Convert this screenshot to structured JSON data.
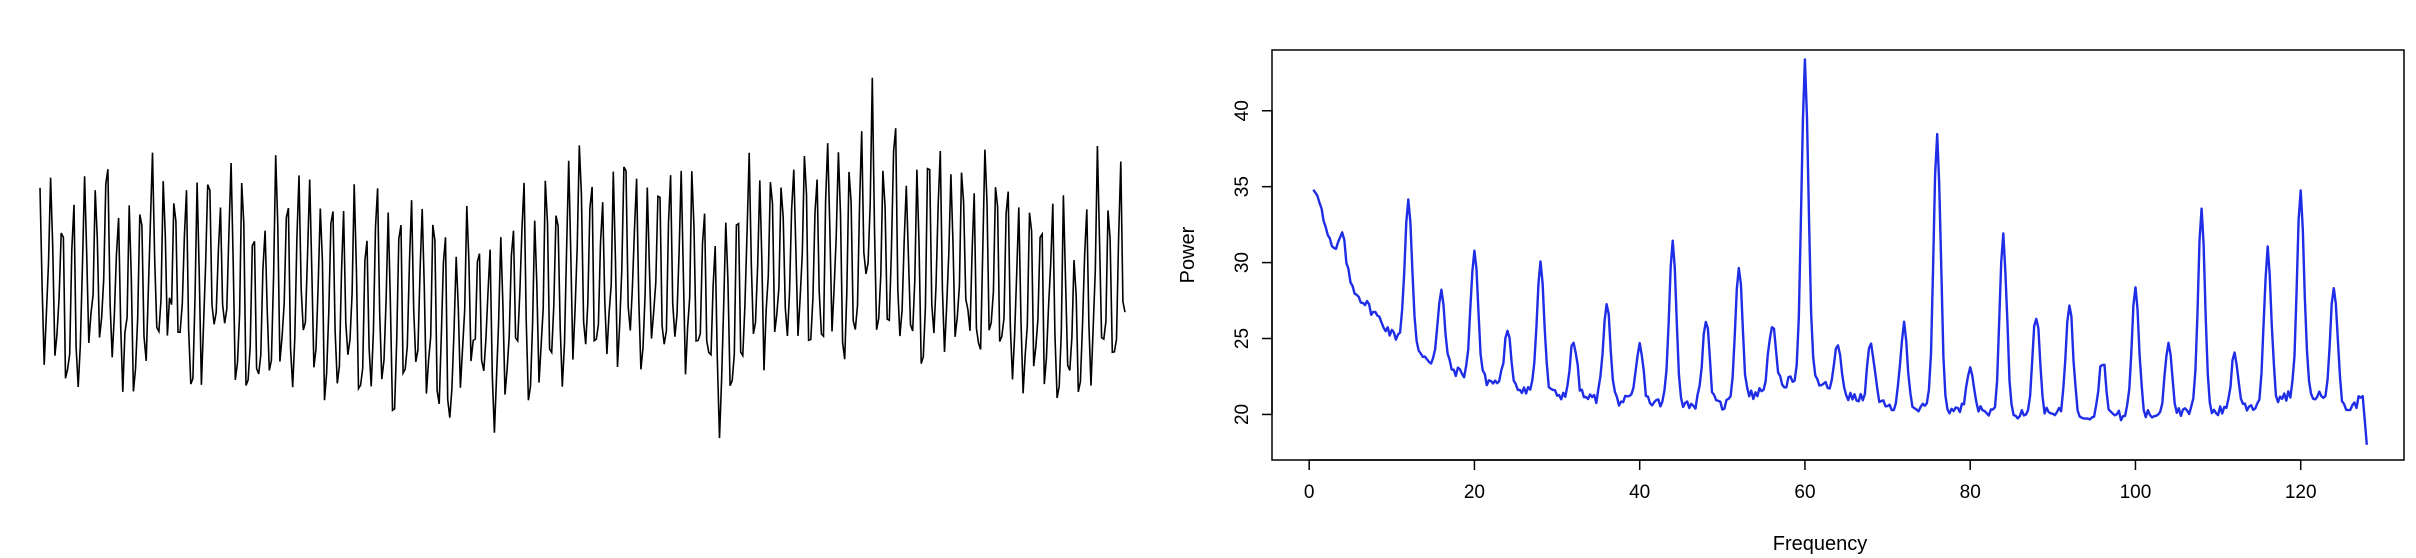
{
  "chart_data": [
    {
      "type": "line",
      "title": "",
      "xlabel": "",
      "ylabel": "",
      "axes_shown": false,
      "color": "#000000",
      "n_points": 512,
      "description_series": {
        "name": "",
        "level_range": [
          -2.6,
          2.3
        ],
        "level_trend": [
          {
            "x": 0,
            "level": 0.0
          },
          {
            "x": 64,
            "level": 0.2
          },
          {
            "x": 128,
            "level": -0.2
          },
          {
            "x": 192,
            "level": -0.6
          },
          {
            "x": 256,
            "level": 0.1
          },
          {
            "x": 300,
            "level": 0.3
          },
          {
            "x": 320,
            "level": -0.2
          },
          {
            "x": 360,
            "level": 0.6
          },
          {
            "x": 420,
            "level": 0.4
          },
          {
            "x": 470,
            "level": -0.3
          },
          {
            "x": 511,
            "level": 0.3
          }
        ],
        "seasonal_period": 5.3,
        "seasonal_amplitude": 1.25
      }
    },
    {
      "type": "line",
      "title": "",
      "xlabel": "Frequency",
      "ylabel": "Power",
      "xlim": [
        -4.5,
        132.5
      ],
      "ylim": [
        17,
        44
      ],
      "xticks": [
        0,
        20,
        40,
        60,
        80,
        100,
        120
      ],
      "yticks": [
        20,
        25,
        30,
        35,
        40
      ],
      "box": true,
      "grid": false,
      "color": "#1f2ee6",
      "series": [
        {
          "name": "",
          "baseline": [
            {
              "x": 0.5,
              "y": 34.8
            },
            {
              "x": 1,
              "y": 34.4
            },
            {
              "x": 1.5,
              "y": 33.8
            },
            {
              "x": 2,
              "y": 32.2
            },
            {
              "x": 3,
              "y": 30.6
            },
            {
              "x": 4,
              "y": 29.8
            },
            {
              "x": 5,
              "y": 28.6
            },
            {
              "x": 6,
              "y": 27.8
            },
            {
              "x": 8,
              "y": 26.6
            },
            {
              "x": 10,
              "y": 25.3
            },
            {
              "x": 12,
              "y": 24.8
            },
            {
              "x": 15,
              "y": 23.4
            },
            {
              "x": 20,
              "y": 22.4
            },
            {
              "x": 25,
              "y": 21.8
            },
            {
              "x": 30,
              "y": 21.3
            },
            {
              "x": 35,
              "y": 21.0
            },
            {
              "x": 40,
              "y": 20.8
            },
            {
              "x": 50,
              "y": 20.6
            },
            {
              "x": 60,
              "y": 22.5
            },
            {
              "x": 65,
              "y": 21.2
            },
            {
              "x": 70,
              "y": 20.5
            },
            {
              "x": 80,
              "y": 20.2
            },
            {
              "x": 90,
              "y": 20.0
            },
            {
              "x": 100,
              "y": 19.9
            },
            {
              "x": 110,
              "y": 20.2
            },
            {
              "x": 115,
              "y": 20.6
            },
            {
              "x": 120,
              "y": 21.4
            },
            {
              "x": 124,
              "y": 21.0
            },
            {
              "x": 126,
              "y": 20.3
            },
            {
              "x": 127.5,
              "y": 21.2
            },
            {
              "x": 128,
              "y": 18.0
            }
          ],
          "peaks": [
            {
              "x": 4,
              "y": 31.8
            },
            {
              "x": 12,
              "y": 34.1
            },
            {
              "x": 16,
              "y": 28.0
            },
            {
              "x": 20,
              "y": 31.0
            },
            {
              "x": 24,
              "y": 25.3
            },
            {
              "x": 28,
              "y": 30.1
            },
            {
              "x": 32,
              "y": 24.8
            },
            {
              "x": 36,
              "y": 27.5
            },
            {
              "x": 40,
              "y": 24.5
            },
            {
              "x": 44,
              "y": 31.3
            },
            {
              "x": 48,
              "y": 26.3
            },
            {
              "x": 52,
              "y": 29.9
            },
            {
              "x": 56,
              "y": 26.0
            },
            {
              "x": 60,
              "y": 43.1
            },
            {
              "x": 64,
              "y": 24.5
            },
            {
              "x": 68,
              "y": 24.7
            },
            {
              "x": 72,
              "y": 25.9
            },
            {
              "x": 76,
              "y": 38.5
            },
            {
              "x": 80,
              "y": 23.4
            },
            {
              "x": 84,
              "y": 31.7
            },
            {
              "x": 88,
              "y": 26.6
            },
            {
              "x": 92,
              "y": 27.5
            },
            {
              "x": 96,
              "y": 23.6
            },
            {
              "x": 100,
              "y": 28.4
            },
            {
              "x": 104,
              "y": 24.9
            },
            {
              "x": 108,
              "y": 33.3
            },
            {
              "x": 112,
              "y": 24.0
            },
            {
              "x": 116,
              "y": 31.0
            },
            {
              "x": 120,
              "y": 34.7
            },
            {
              "x": 124,
              "y": 28.6
            }
          ]
        }
      ]
    }
  ]
}
